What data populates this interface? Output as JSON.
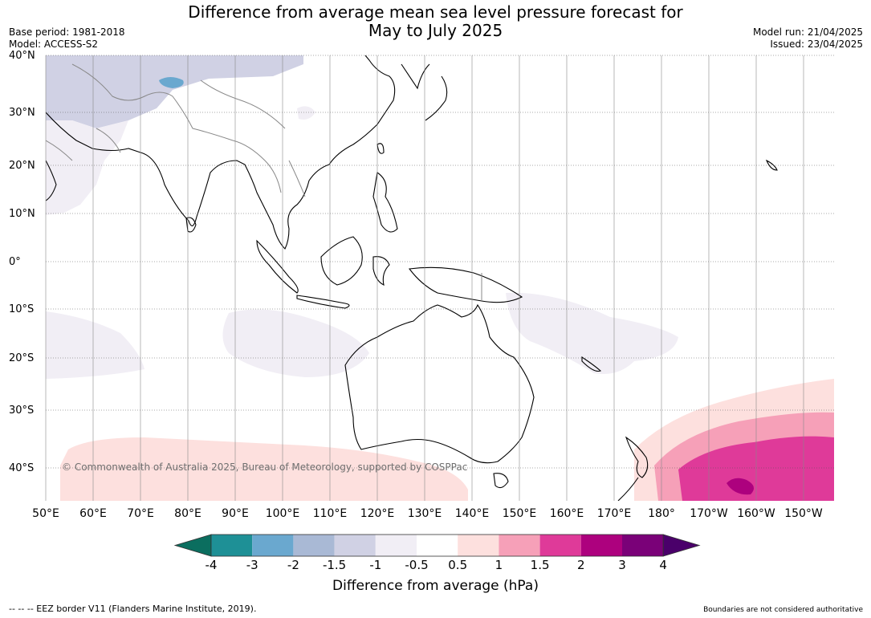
{
  "title_line1": "Difference from average mean sea level pressure forecast for",
  "title_line2": "May to July 2025",
  "base_period": "Base period: 1981-2018",
  "model": "Model: ACCESS-S2",
  "model_run": "Model run: 21/04/2025",
  "issued": "Issued: 23/04/2025",
  "lat_labels": [
    "40°N",
    "30°N",
    "20°N",
    "10°N",
    "0°",
    "10°S",
    "20°S",
    "30°S",
    "40°S"
  ],
  "lon_labels": [
    "50°E",
    "60°E",
    "70°E",
    "80°E",
    "90°E",
    "100°E",
    "110°E",
    "120°E",
    "130°E",
    "140°E",
    "150°E",
    "160°E",
    "170°E",
    "180°",
    "170°W",
    "160°W",
    "150°W"
  ],
  "copyright": "© Commonwealth of Australia 2025, Bureau of Meteorology, supported by COSPPac",
  "colorbar": {
    "ticks": [
      "-4",
      "-3",
      "-2",
      "-1.5",
      "-1",
      "-0.5",
      "0.5",
      "1",
      "1.5",
      "2",
      "3",
      "4"
    ],
    "colors": [
      "#0b6e5f",
      "#1e9096",
      "#6aa8cf",
      "#a9b9d5",
      "#d0d1e4",
      "#f1eef5",
      "#ffffff",
      "#fde0de",
      "#f6a0b8",
      "#df3a99",
      "#ad017e",
      "#7a0178",
      "#4a006a"
    ],
    "title": "Difference from average (hPa)"
  },
  "eez_note": "--  --  -- EEZ border V11 (Flanders Marine Institute, 2019).",
  "boundaries_note": "Boundaries are not considered authoritative"
}
